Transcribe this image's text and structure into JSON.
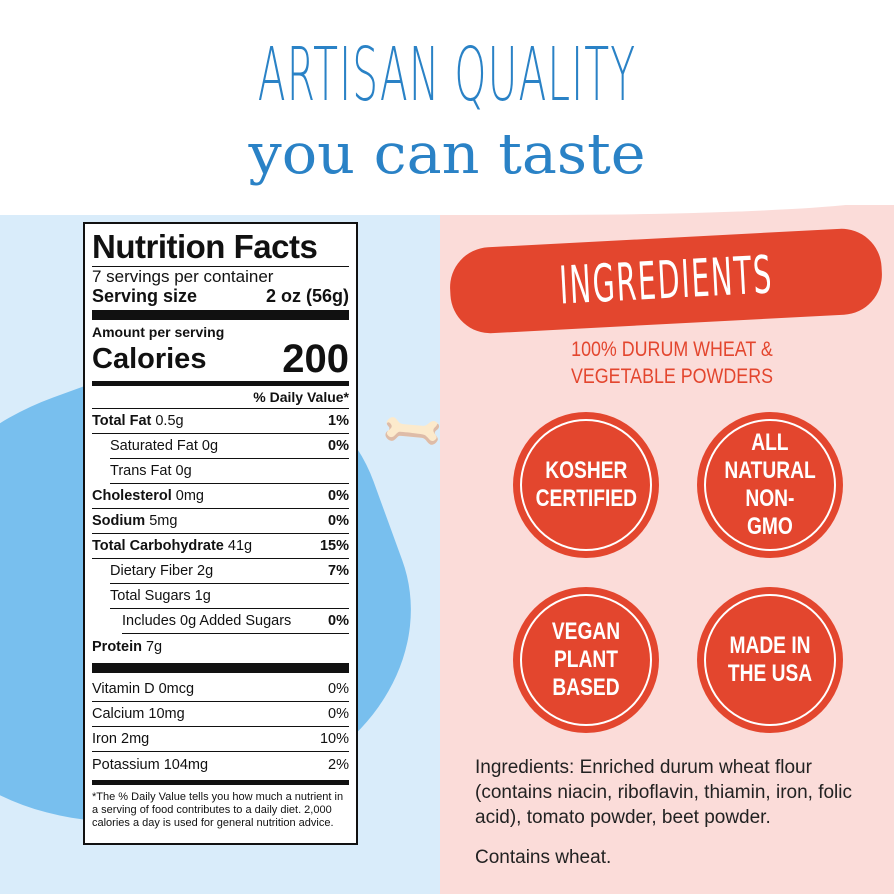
{
  "headline": {
    "line1": "ARTISAN QUALITY",
    "line2": "you can taste"
  },
  "nutrition": {
    "title": "Nutrition Facts",
    "servings": "7 servings per container",
    "serving_size_label": "Serving size",
    "serving_size_value": "2 oz (56g)",
    "amount_per_serving": "Amount per serving",
    "calories_label": "Calories",
    "calories_value": "200",
    "daily_value_header": "% Daily Value*",
    "rows": [
      {
        "bold": "Total Fat",
        "amt": " 0.5g",
        "dv": "1%"
      },
      {
        "bold": "",
        "amt": "Saturated Fat 0g",
        "dv": "0%"
      },
      {
        "bold": "",
        "amt": "Trans Fat 0g",
        "dv": ""
      },
      {
        "bold": "Cholesterol",
        "amt": " 0mg",
        "dv": "0%"
      },
      {
        "bold": "Sodium",
        "amt": " 5mg",
        "dv": "0%"
      },
      {
        "bold": "Total Carbohydrate",
        "amt": " 41g",
        "dv": "15%"
      },
      {
        "bold": "",
        "amt": "Dietary Fiber 2g",
        "dv": "7%"
      },
      {
        "bold": "",
        "amt": "Total Sugars 1g",
        "dv": ""
      },
      {
        "bold": "",
        "amt": "Includes 0g Added Sugars",
        "dv": "0%"
      },
      {
        "bold": "Protein",
        "amt": " 7g",
        "dv": ""
      }
    ],
    "vitamins": [
      {
        "label": "Vitamin D 0mcg",
        "dv": "0%"
      },
      {
        "label": "Calcium 10mg",
        "dv": "0%"
      },
      {
        "label": "Iron 2mg",
        "dv": "10%"
      },
      {
        "label": "Potassium 104mg",
        "dv": "2%"
      }
    ],
    "footnote": "*The % Daily Value tells you how much a nutrient in a serving of food contributes to a daily diet. 2,000 calories a day is used for general nutrition advice."
  },
  "ingredients": {
    "banner": "INGREDIENTS",
    "subtitle_line1": "100% DURUM WHEAT &",
    "subtitle_line2": "VEGETABLE POWDERS",
    "badges": [
      "KOSHER CERTIFIED",
      "ALL NATURAL NON-GMO",
      "VEGAN PLANT BASED",
      "MADE IN THE USA"
    ],
    "text": "Ingredients: Enriched durum wheat flour (contains niacin, riboflavin, thiamin, iron, folic acid), tomato powder, beet powder.",
    "contains": "Contains wheat."
  },
  "colors": {
    "blue": "#2a82c6",
    "red": "#e3462e",
    "light_blue": "#d9ecfa",
    "pink": "#fbdcd9"
  }
}
